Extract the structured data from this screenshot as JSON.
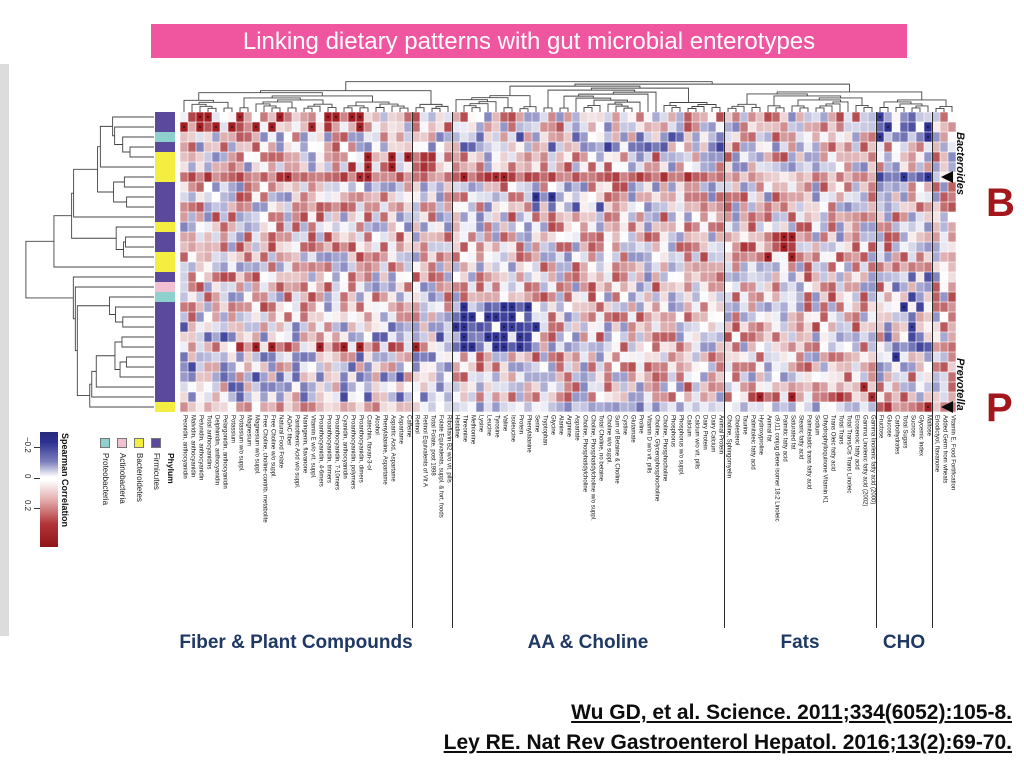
{
  "slide": {
    "title": "Linking dietary patterns with gut microbial enterotypes",
    "banner_color": "#f0559f",
    "citations": [
      "Wu GD, et al. Science. 2011;334(6052):105-8.",
      "Ley RE. Nat Rev Gastroenterol Hepatol. 2016;13(2):69-70."
    ]
  },
  "legend": {
    "colorbar_title": "Spearman Correlation",
    "colorbar_ticks": [
      "−0.2",
      "0",
      "0.2"
    ],
    "phylum_title": "Phylum",
    "phyla": [
      {
        "name": "Proteobacteria",
        "code": "P",
        "color": "#8fd0cd"
      },
      {
        "name": "Actinobacteria",
        "code": "A",
        "color": "#f2c0d3"
      },
      {
        "name": "Bacteroidetes",
        "code": "B",
        "color": "#f3ee3f"
      },
      {
        "name": "Firmicutes",
        "code": "F",
        "color": "#5b4a9b"
      }
    ]
  },
  "annotations": {
    "letter_color": "#a3161b",
    "bacteroides": {
      "label": "Bacteroides",
      "letter": "B",
      "row": 6
    },
    "prevotella": {
      "label": "Prevotella",
      "letter": "P",
      "row": 29
    }
  },
  "group_label_color": "#1f3864",
  "chart_data": {
    "type": "heatmap",
    "title": "Spearman correlations between dietary components (columns) and gut bacterial taxa (rows)",
    "value_range": [
      -0.3,
      0.3
    ],
    "colormap": {
      "negative": "#2e3192",
      "zero": "#ffffff",
      "positive": "#a11d22"
    },
    "legend_position": "bottom-left",
    "render_seed": 1234,
    "column_groups": [
      {
        "id": "fiber",
        "label": "Fiber & Plant Compounds",
        "columns": [
          "Peonidin, anthocyanidin",
          "Malvidin, anthocyanidin",
          "Petunidin, anthocyanidin",
          "Total anthocyanidins",
          "Delphinidin, anthocyanidin",
          "Pelargonidin, anthocyanidin",
          "Potassium",
          "Potassium w/o suppl.",
          "Magnesium",
          "Magnesium w/o suppl.",
          "Free Choline, choline-contrib. metabolite",
          "Free Choline w/o suppl.",
          "Natural Food Folate",
          "AOAC fiber",
          "Pantothenic Acid w/o suppl.",
          "Naringenin, flavanone",
          "Vitamin E w/o vit. suppl.",
          "Proanthocyanidin, 4-6mers",
          "Proanthocyanidin, trimers",
          "Proanthocyanidin, 7-10mers",
          "Cyanidin, anthocyanidin",
          "Proanthocyanidin, polymers",
          "Proanthocyanidin, dimers",
          "Catechin, flavan-3-ol",
          "Alcohol",
          "Phenylalanine, Aspartame",
          "Aspartic Acid, Aspartame",
          "Aspartame",
          "Caffeine"
        ]
      },
      {
        "id": "vitA",
        "label": "",
        "columns": [
          "Retinol",
          "Retinol Equivalents of Vit A",
          "Total Folate, post 1998",
          "Folate Equivalents, suppl. & fort. foods",
          "Riboflavin B2 w/o vit. pills"
        ]
      },
      {
        "id": "aa",
        "label": "AA & Choline",
        "columns": [
          "Histidine",
          "Threonine",
          "Methionine",
          "Lysine",
          "Leucine",
          "Tyrosine",
          "Valine",
          "Isoleucine",
          "Protein",
          "Phenylalanine",
          "Serine",
          "Tryptophan",
          "Glycine",
          "Alanine",
          "Arginine",
          "Aspartate",
          "Choline, Phosphatidylcholine",
          "Choline, Phosphatidylcholine w/o suppl.",
          "Total Choline, no betaine",
          "Choline w/o suppl.",
          "Sum of Betaine & Choline",
          "Cystine",
          "Glutamate",
          "Proline",
          "Vitamin D w/o vit. pills",
          "Choline, Glycerophosphocholine",
          "Choline, Phosphocholine",
          "Phosphorus",
          "Phosphorus w/o suppl.",
          "Calcium",
          "Calcium w/o vit. pills",
          "Dairy Protein",
          "Dairy Calcium",
          "Animal Protein"
        ]
      },
      {
        "id": "fats",
        "label": "Fats",
        "columns": [
          "Choline, Sphingomyelin",
          "Cholesterol",
          "Taurine",
          "Palmitoleic fatty acid",
          "Hydroxyproline",
          "Animal fat",
          "c9,t11 conjug diene isomer 18:2 Linoleic",
          "Palmitic fatty acid",
          "Saturated fat",
          "Stearic fatty acid",
          "Palmitelaidic trans fatty acid",
          "Sodium",
          "Dihydrophylloquinone Vitamin K1",
          "Trans Oleic fatty acid",
          "Total Trans",
          "Total Trans/Cis Trans Linoleic",
          "Eicosenoic fatty acid",
          "Gamma Linolenic fatty acid (2002)",
          "Gamma linolenic fatty acid (2000)"
        ]
      },
      {
        "id": "cho",
        "label": "CHO",
        "columns": [
          "Fructose",
          "Glucose",
          "Carbohydrates",
          "Total Sugars",
          "Sucrose",
          "Glycemic Index",
          "Maltose"
        ]
      },
      {
        "id": "misc",
        "label": "",
        "columns": [
          "Eriodictyol, flavanone",
          "Added Germ from wheats",
          "Vitamin E, Food Fortification"
        ]
      }
    ],
    "row_phyla": [
      "F",
      "F",
      "P",
      "F",
      "B",
      "B",
      "B",
      "F",
      "F",
      "F",
      "F",
      "B",
      "F",
      "F",
      "B",
      "B",
      "F",
      "A",
      "P",
      "F",
      "F",
      "F",
      "F",
      "F",
      "F",
      "F",
      "F",
      "F",
      "F",
      "B"
    ],
    "special_rows": {
      "6": {
        "noise": 0.4,
        "bias": {
          "fiber": 0.2,
          "vitA": 0.18,
          "aa": 0.22,
          "fats": 0.1,
          "cho": -0.22,
          "misc": -0.05
        }
      },
      "29": {
        "noise": 0.5,
        "bias": {
          "fiber": 0.1,
          "vitA": 0.02,
          "aa": -0.1,
          "fats": -0.08,
          "cho": 0.2,
          "misc": 0.12
        }
      }
    },
    "patches": [
      [
        0,
        2,
        87,
        93,
        -0.2
      ],
      [
        2,
        3,
        30,
        67,
        -0.1
      ],
      [
        19,
        23,
        34,
        44,
        -0.22
      ],
      [
        16,
        25,
        88,
        93,
        -0.12
      ],
      [
        21,
        28,
        0,
        33,
        -0.08
      ],
      [
        23,
        23,
        2,
        30,
        0.18
      ],
      [
        12,
        14,
        69,
        76,
        0.15
      ],
      [
        0,
        1,
        0,
        23,
        0.12
      ],
      [
        4,
        5,
        20,
        33,
        0.1
      ],
      [
        8,
        9,
        44,
        52,
        -0.15
      ],
      [
        27,
        28,
        69,
        86,
        0.12
      ]
    ]
  }
}
